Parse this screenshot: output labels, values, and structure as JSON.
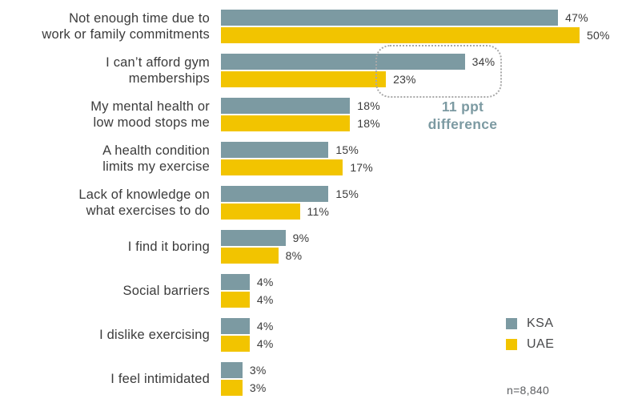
{
  "chart_data": {
    "type": "bar",
    "orientation": "horizontal",
    "title": "",
    "categories": [
      "Not enough time due to\nwork or family commitments",
      "I can’t afford gym\nmemberships",
      "My mental health or\nlow mood stops me",
      "A health condition\nlimits my exercise",
      "Lack of knowledge on\nwhat exercises to do",
      "I find it boring",
      "Social barriers",
      "I dislike exercising",
      "I feel intimidated"
    ],
    "series": [
      {
        "name": "KSA",
        "color": "#7c9aa2",
        "values": [
          47,
          34,
          18,
          15,
          15,
          9,
          4,
          4,
          3
        ]
      },
      {
        "name": "UAE",
        "color": "#f2c400",
        "values": [
          50,
          23,
          18,
          17,
          11,
          8,
          4,
          4,
          3
        ]
      }
    ],
    "value_suffix": "%",
    "xlim": [
      0,
      50
    ],
    "grid": false,
    "legend_position": "bottom-right",
    "annotation": {
      "text": "11 ppt\ndifference",
      "target_category": "I can’t afford gym\nmemberships"
    },
    "note": "n=8,840"
  }
}
